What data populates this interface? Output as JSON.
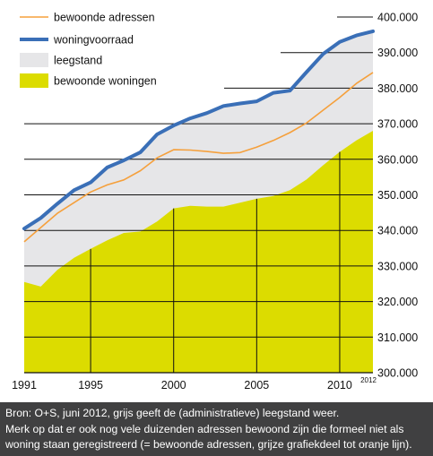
{
  "chart_data": {
    "type": "area",
    "title": "",
    "xlabel": "",
    "ylabel": "",
    "xlim": [
      1991,
      2012
    ],
    "ylim": [
      300000,
      400000
    ],
    "x_ticks": [
      "1991",
      "1995",
      "2000",
      "2005",
      "2010",
      "2012"
    ],
    "y_ticks": [
      "300.000",
      "310.000",
      "320.000",
      "330.000",
      "340.000",
      "350.000",
      "360.000",
      "370.000",
      "380.000",
      "390.000",
      "400.000"
    ],
    "grid": true,
    "legend_position": "top-left",
    "legend": [
      {
        "label": "bewoonde adressen",
        "kind": "line",
        "color": "#f5a03c"
      },
      {
        "label": "woningvoorraad",
        "kind": "line",
        "color": "#3a6fb7"
      },
      {
        "label": "leegstand",
        "kind": "area",
        "color": "#e6e6e8"
      },
      {
        "label": "bewoonde woningen",
        "kind": "area",
        "color": "#dcdc00"
      }
    ],
    "series": [
      {
        "name": "woningvoorraad",
        "kind": "line",
        "color": "#3a6fb7",
        "x": [
          1991,
          1992,
          1993,
          1994,
          1995,
          1996,
          1997,
          1998,
          1999,
          2000,
          2001,
          2002,
          2003,
          2004,
          2005,
          2006,
          2007,
          2008,
          2009,
          2010,
          2011,
          2012
        ],
        "values": [
          340500,
          343500,
          347500,
          351300,
          353500,
          357700,
          359700,
          362000,
          367000,
          369500,
          371500,
          373000,
          375000,
          375700,
          376300,
          378700,
          379300,
          384500,
          389600,
          393000,
          394800,
          396000
        ]
      },
      {
        "name": "bewoonde adressen",
        "kind": "line",
        "color": "#f5a03c",
        "x": [
          1991,
          1992,
          1993,
          1994,
          1995,
          1996,
          1997,
          1998,
          1999,
          2000,
          2001,
          2002,
          2003,
          2004,
          2005,
          2006,
          2007,
          2008,
          2009,
          2010,
          2011,
          2012
        ],
        "values": [
          336800,
          340800,
          344800,
          347800,
          350800,
          352800,
          354200,
          356800,
          360400,
          362700,
          362600,
          362200,
          361700,
          361900,
          363400,
          365300,
          367500,
          370200,
          373800,
          377400,
          381300,
          384400
        ]
      },
      {
        "name": "bewoonde woningen",
        "kind": "area",
        "color": "#dcdc00",
        "x": [
          1991,
          1992,
          1993,
          1994,
          1995,
          1996,
          1997,
          1998,
          1999,
          2000,
          2001,
          2002,
          2003,
          2004,
          2005,
          2006,
          2007,
          2008,
          2009,
          2010,
          2011,
          2012
        ],
        "values": [
          325500,
          324200,
          328900,
          332300,
          334800,
          337200,
          339300,
          339700,
          342500,
          346200,
          346900,
          346700,
          346700,
          347800,
          348900,
          349700,
          351300,
          354300,
          358300,
          362100,
          365300,
          368000
        ]
      }
    ]
  },
  "caption": {
    "line1": "Bron: O+S, juni 2012, grijs geeft de (administratieve) leegstand weer.",
    "line2": "  Merk op dat er ook nog vele duizenden adressen bewoond zijn die formeel niet als",
    "line3": "  woning staan geregistreerd (= bewoonde adressen, grijze grafiekdeel tot oranje lijn)."
  }
}
